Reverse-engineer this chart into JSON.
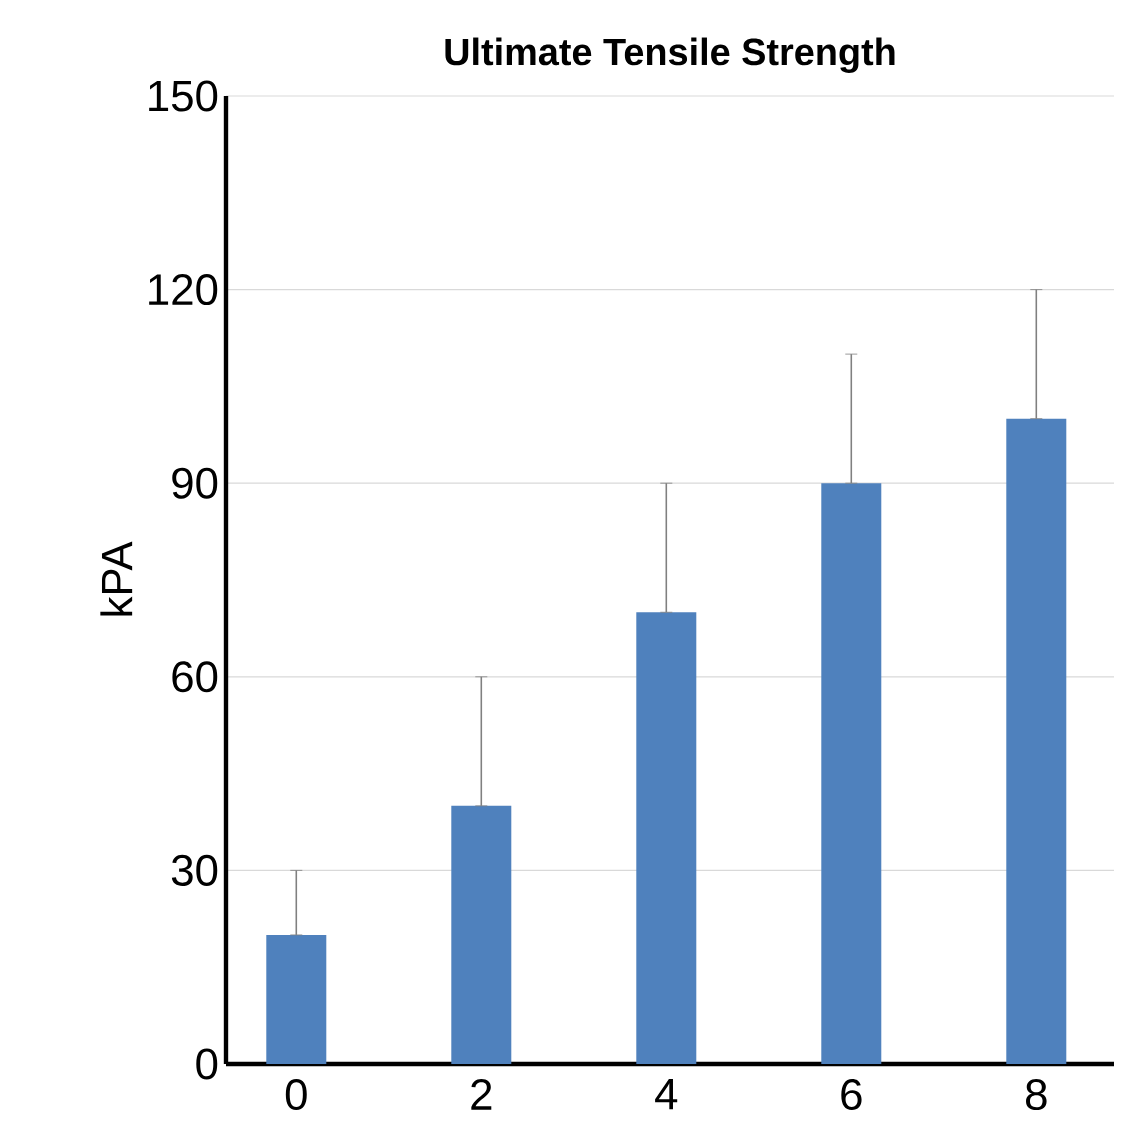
{
  "chart_data": {
    "type": "bar",
    "title": "Ultimate Tensile Strength",
    "ylabel": "kPA",
    "categories": [
      "0",
      "2",
      "4",
      "6",
      "8"
    ],
    "values": [
      20,
      40,
      70,
      90,
      100
    ],
    "errors": [
      [
        20,
        30
      ],
      [
        40,
        60
      ],
      [
        70,
        90
      ],
      [
        90,
        110
      ],
      [
        100,
        120
      ]
    ],
    "color": "#4f81bd",
    "ylim": [
      0,
      150
    ],
    "yticks": [
      0,
      30,
      60,
      90,
      120,
      150
    ],
    "grid": "y"
  }
}
